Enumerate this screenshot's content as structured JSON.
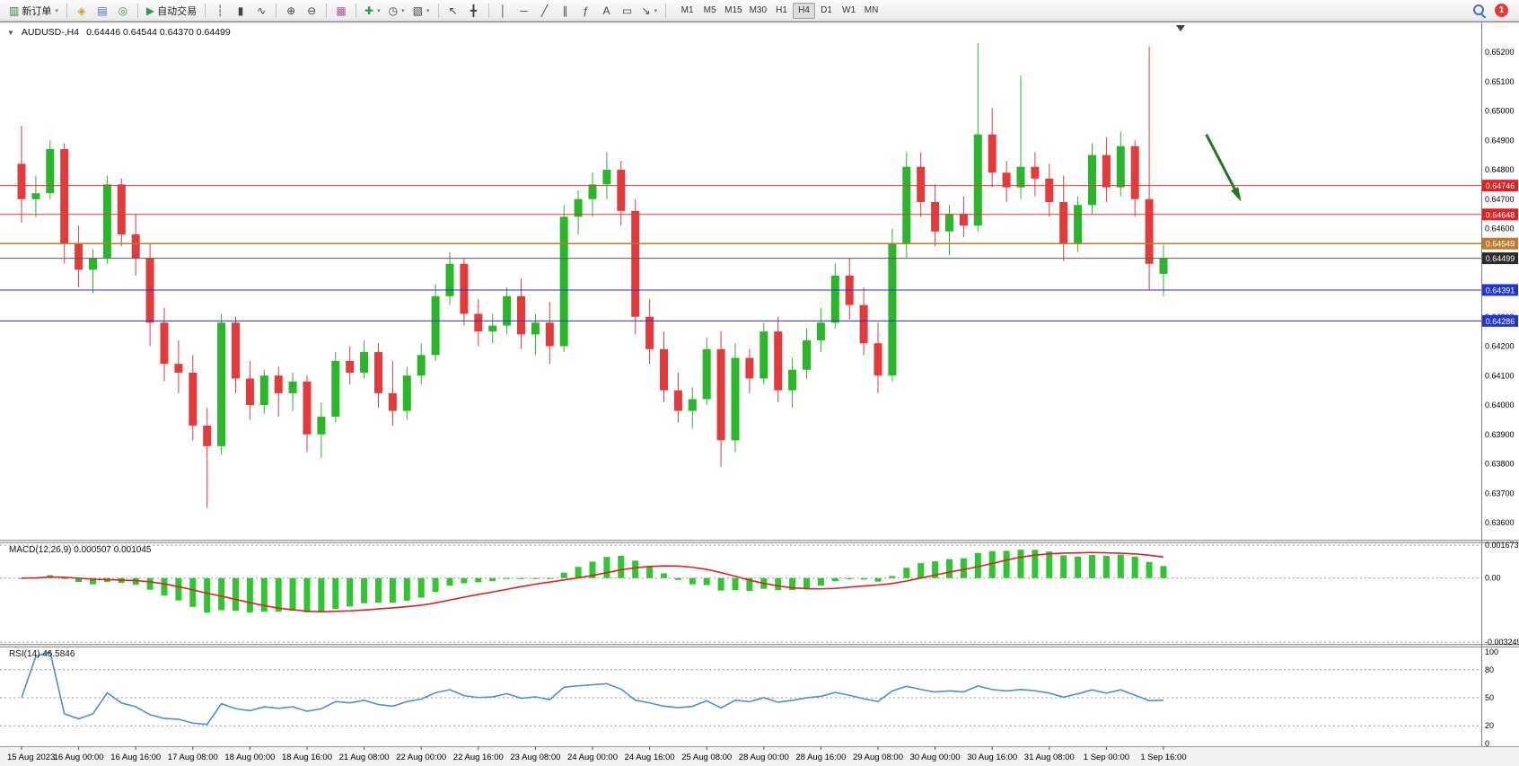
{
  "colors": {
    "up": "#2bb52b",
    "down": "#e23b3b",
    "macd_hist": "#33c433",
    "macd_signal": "#e02020",
    "rsi_line": "#4a90d2",
    "axis_text": "#000000",
    "arrow": "#1f7a1f"
  },
  "toolbar": {
    "caret_glyph": "▾",
    "groups": [
      [
        {
          "name": "new-order",
          "glyph": "▥",
          "color": "#2f7d32",
          "label": "新订单",
          "caret": true
        }
      ],
      [
        {
          "name": "market-watch",
          "glyph": "◈",
          "color": "#d8a01d"
        },
        {
          "name": "data-window",
          "glyph": "▤",
          "color": "#3b6fd4"
        },
        {
          "name": "navigator",
          "glyph": "◎",
          "color": "#2f9e44"
        }
      ],
      [
        {
          "name": "auto-trading",
          "glyph": "▶",
          "color": "#2f9e44",
          "label": "自动交易"
        }
      ],
      [
        {
          "name": "bar-chart-type",
          "glyph": "┆"
        },
        {
          "name": "candlestick-type",
          "glyph": "▮"
        },
        {
          "name": "line-chart-type",
          "glyph": "∿"
        }
      ],
      [
        {
          "name": "zoom-in",
          "glyph": "⊕"
        },
        {
          "name": "zoom-out",
          "glyph": "⊖"
        }
      ],
      [
        {
          "name": "tile-windows",
          "glyph": "▦",
          "color": "#b04a9e"
        }
      ],
      [
        {
          "name": "new-chart",
          "glyph": "✚",
          "color": "#2f9e44",
          "caret": true
        },
        {
          "name": "profiles",
          "glyph": "◷",
          "caret": true
        },
        {
          "name": "indicators-menu",
          "glyph": "▧",
          "caret": true
        }
      ],
      [
        {
          "name": "cursor",
          "glyph": "↖"
        },
        {
          "name": "crosshair",
          "glyph": "╋"
        }
      ],
      [
        {
          "name": "vertical-line",
          "glyph": "│"
        },
        {
          "name": "horizontal-line",
          "glyph": "─"
        },
        {
          "name": "trendline",
          "glyph": "╱"
        },
        {
          "name": "equidistant-channel",
          "glyph": "∥"
        },
        {
          "name": "fibonacci",
          "glyph": "ƒ"
        },
        {
          "name": "text",
          "glyph": "A"
        },
        {
          "name": "text-label",
          "glyph": "▭"
        },
        {
          "name": "arrows",
          "glyph": "↘",
          "caret": true
        }
      ]
    ],
    "timeframes": [
      "M1",
      "M5",
      "M15",
      "M30",
      "H1",
      "H4",
      "D1",
      "W1",
      "MN"
    ],
    "active_timeframe": "H4",
    "notification_count": "1"
  },
  "chart": {
    "collapse_glyph": "▼",
    "symbol_label": "AUDUSD-,H4",
    "ohlc_readout": "0.64446 0.64544 0.64370 0.64499",
    "y_ticks": [
      "0.65200",
      "0.65100",
      "0.65000",
      "0.64900",
      "0.64800",
      "0.64700",
      "0.64600",
      "0.64500",
      "0.64400",
      "0.64300",
      "0.64200",
      "0.64100",
      "0.64000",
      "0.63900",
      "0.63800",
      "0.63700",
      "0.63600"
    ],
    "hlines": [
      {
        "name": "resistance-line-1",
        "price": 0.64746,
        "label": "0.64746",
        "color": "#e03a3a",
        "badge": "#e02020",
        "width": 1
      },
      {
        "name": "resistance-line-2",
        "price": 0.64648,
        "label": "0.64648",
        "color": "#e03a3a",
        "badge": "#e02020",
        "width": 1
      },
      {
        "name": "pivot-line",
        "price": 0.64549,
        "label": "0.64549",
        "color": "#c07a2d",
        "badge": "#c07a2d",
        "width": 1.5
      },
      {
        "name": "current-price-line",
        "price": 0.64499,
        "label": "0.64499",
        "color": "#5a5a5a",
        "badge": "#2b2b2b",
        "width": 1
      },
      {
        "name": "support-line-1",
        "price": 0.64391,
        "label": "0.64391",
        "color": "#2533d9",
        "badge": "#1f35d8",
        "width": 1
      },
      {
        "name": "support-line-2",
        "price": 0.64286,
        "label": "0.64286",
        "color": "#2533d9",
        "badge": "#1f35d8",
        "width": 1
      }
    ],
    "annotation_arrow": {
      "from": {
        "bar": 83,
        "price": 0.6492
      },
      "to": {
        "bar": 85.3,
        "price": 0.64705
      },
      "color": "#1f7a1f"
    }
  },
  "macd": {
    "label": "MACD(12,26,9) 0.000507 0.001045",
    "scale_labels": [
      "0.001673",
      "0.00",
      "-0.003249"
    ],
    "range": [
      -0.003249,
      0.001673
    ],
    "fast": 12,
    "slow": 26,
    "signal": 9,
    "current_values": [
      0.000507,
      0.001045
    ]
  },
  "rsi": {
    "label": "RSI(14) 46.5846",
    "period": 14,
    "levels": [
      100,
      80,
      50,
      20,
      0
    ],
    "current_value": 46.5846
  },
  "chart_data": [
    {
      "type": "candlestick",
      "symbol": "AUDUSD",
      "timeframe": "H4",
      "ylim": [
        0.6356,
        0.6528
      ],
      "tick_every": 4,
      "x_tick_labels": [
        "15 Aug 2023",
        "16 Aug 00:00",
        "16 Aug 16:00",
        "17 Aug 08:00",
        "18 Aug 00:00",
        "18 Aug 16:00",
        "21 Aug 08:00",
        "22 Aug 00:00",
        "22 Aug 16:00",
        "23 Aug 08:00",
        "24 Aug 00:00",
        "24 Aug 16:00",
        "25 Aug 08:00",
        "28 Aug 00:00",
        "28 Aug 16:00",
        "29 Aug 08:00",
        "30 Aug 00:00",
        "30 Aug 16:00",
        "31 Aug 08:00",
        "1 Sep 00:00",
        "1 Sep 16:00"
      ],
      "ohlc": [
        [
          0.6482,
          0.6495,
          0.6462,
          0.647
        ],
        [
          0.647,
          0.6478,
          0.6464,
          0.6472
        ],
        [
          0.6472,
          0.649,
          0.647,
          0.6487
        ],
        [
          0.6487,
          0.6489,
          0.6448,
          0.6455
        ],
        [
          0.6455,
          0.6461,
          0.644,
          0.6446
        ],
        [
          0.6446,
          0.6453,
          0.6438,
          0.645
        ],
        [
          0.645,
          0.6478,
          0.6448,
          0.6475
        ],
        [
          0.6475,
          0.6477,
          0.6454,
          0.6458
        ],
        [
          0.6458,
          0.6465,
          0.6444,
          0.645
        ],
        [
          0.645,
          0.6455,
          0.642,
          0.6428
        ],
        [
          0.6428,
          0.6433,
          0.6408,
          0.6414
        ],
        [
          0.6414,
          0.6422,
          0.6404,
          0.6411
        ],
        [
          0.6411,
          0.6417,
          0.6388,
          0.6393
        ],
        [
          0.6393,
          0.6399,
          0.6365,
          0.6386
        ],
        [
          0.6386,
          0.6431,
          0.6383,
          0.6428
        ],
        [
          0.6428,
          0.643,
          0.6404,
          0.6409
        ],
        [
          0.6409,
          0.6415,
          0.6395,
          0.64
        ],
        [
          0.64,
          0.6412,
          0.6397,
          0.641
        ],
        [
          0.641,
          0.6413,
          0.6396,
          0.6404
        ],
        [
          0.6404,
          0.6411,
          0.6398,
          0.6408
        ],
        [
          0.6408,
          0.641,
          0.6384,
          0.639
        ],
        [
          0.639,
          0.6401,
          0.6382,
          0.6396
        ],
        [
          0.6396,
          0.6418,
          0.6394,
          0.6415
        ],
        [
          0.6415,
          0.642,
          0.6407,
          0.6411
        ],
        [
          0.6411,
          0.6422,
          0.6409,
          0.6418
        ],
        [
          0.6418,
          0.6421,
          0.6399,
          0.6404
        ],
        [
          0.6404,
          0.6415,
          0.6393,
          0.6398
        ],
        [
          0.6398,
          0.6413,
          0.6395,
          0.641
        ],
        [
          0.641,
          0.6421,
          0.6407,
          0.6417
        ],
        [
          0.6417,
          0.6441,
          0.6415,
          0.6437
        ],
        [
          0.6437,
          0.6452,
          0.6434,
          0.6448
        ],
        [
          0.6448,
          0.645,
          0.6427,
          0.6431
        ],
        [
          0.6431,
          0.6436,
          0.642,
          0.6425
        ],
        [
          0.6425,
          0.6431,
          0.6421,
          0.6427
        ],
        [
          0.6427,
          0.644,
          0.6424,
          0.6437
        ],
        [
          0.6437,
          0.6443,
          0.6419,
          0.6424
        ],
        [
          0.6424,
          0.6431,
          0.6417,
          0.6428
        ],
        [
          0.6428,
          0.6435,
          0.6414,
          0.642
        ],
        [
          0.642,
          0.6468,
          0.6418,
          0.6464
        ],
        [
          0.6464,
          0.6473,
          0.6458,
          0.647
        ],
        [
          0.647,
          0.6479,
          0.6464,
          0.6475
        ],
        [
          0.6475,
          0.6486,
          0.647,
          0.648
        ],
        [
          0.648,
          0.6483,
          0.6461,
          0.6466
        ],
        [
          0.6466,
          0.647,
          0.6424,
          0.643
        ],
        [
          0.643,
          0.6436,
          0.6414,
          0.6419
        ],
        [
          0.6419,
          0.6425,
          0.6401,
          0.6405
        ],
        [
          0.6405,
          0.6411,
          0.6394,
          0.6398
        ],
        [
          0.6398,
          0.6406,
          0.6392,
          0.6402
        ],
        [
          0.6402,
          0.6423,
          0.64,
          0.6419
        ],
        [
          0.6419,
          0.6425,
          0.6379,
          0.6388
        ],
        [
          0.6388,
          0.6421,
          0.6384,
          0.6416
        ],
        [
          0.6416,
          0.6419,
          0.6404,
          0.6409
        ],
        [
          0.6409,
          0.6428,
          0.6407,
          0.6425
        ],
        [
          0.6425,
          0.643,
          0.6401,
          0.6405
        ],
        [
          0.6405,
          0.6416,
          0.6399,
          0.6412
        ],
        [
          0.6412,
          0.6426,
          0.6409,
          0.6422
        ],
        [
          0.6422,
          0.6433,
          0.6418,
          0.6428
        ],
        [
          0.6428,
          0.6448,
          0.6426,
          0.6444
        ],
        [
          0.6444,
          0.645,
          0.6429,
          0.6434
        ],
        [
          0.6434,
          0.644,
          0.6417,
          0.6421
        ],
        [
          0.6421,
          0.6428,
          0.6404,
          0.641
        ],
        [
          0.641,
          0.646,
          0.6408,
          0.6455
        ],
        [
          0.6455,
          0.6486,
          0.645,
          0.6481
        ],
        [
          0.6481,
          0.6486,
          0.6464,
          0.6469
        ],
        [
          0.6469,
          0.6475,
          0.6454,
          0.6459
        ],
        [
          0.6459,
          0.6468,
          0.6451,
          0.6465
        ],
        [
          0.6465,
          0.6471,
          0.6457,
          0.6461
        ],
        [
          0.6461,
          0.6523,
          0.6459,
          0.6492
        ],
        [
          0.6492,
          0.6501,
          0.6474,
          0.6479
        ],
        [
          0.6479,
          0.6483,
          0.6469,
          0.6474
        ],
        [
          0.6474,
          0.6512,
          0.647,
          0.6481
        ],
        [
          0.6481,
          0.6486,
          0.6471,
          0.6477
        ],
        [
          0.6477,
          0.6482,
          0.6464,
          0.6469
        ],
        [
          0.6469,
          0.6478,
          0.6449,
          0.6455
        ],
        [
          0.6455,
          0.6471,
          0.6452,
          0.6468
        ],
        [
          0.6468,
          0.6489,
          0.6465,
          0.6485
        ],
        [
          0.6485,
          0.6491,
          0.6469,
          0.6474
        ],
        [
          0.6474,
          0.6493,
          0.6471,
          0.6488
        ],
        [
          0.6488,
          0.649,
          0.6464,
          0.647
        ],
        [
          0.647,
          0.6522,
          0.6439,
          0.6448
        ],
        [
          0.64446,
          0.64544,
          0.6437,
          0.64499
        ]
      ]
    },
    {
      "type": "bar",
      "name": "MACD histogram, main line = EMA12 - EMA26 of closes above",
      "params": "12,26,9",
      "ylim": [
        -0.003249,
        0.001673
      ],
      "derived_from_ohlc": true,
      "current_values": [
        0.000507,
        0.001045
      ]
    },
    {
      "type": "line",
      "name": "RSI(14) of closes above",
      "ylim": [
        0,
        100
      ],
      "levels": [
        80,
        50,
        20
      ],
      "derived_from_ohlc": true,
      "current_value": 46.5846
    }
  ]
}
